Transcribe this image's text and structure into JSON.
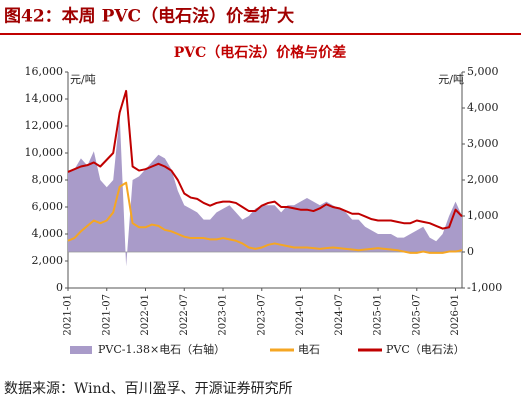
{
  "header": {
    "title": "图42：本周 PVC（电石法）价差扩大"
  },
  "source": "数据来源：Wind、百川盈孚、开源证券研究所",
  "chart_data": {
    "type": "line",
    "title": "PVC（电石法）价格与价差",
    "ylabel": "元/吨",
    "y2label": "元/吨",
    "x": [
      "2021-01",
      "2021-02",
      "2021-03",
      "2021-04",
      "2021-05",
      "2021-06",
      "2021-07",
      "2021-08",
      "2021-09",
      "2021-10",
      "2021-11",
      "2021-12",
      "2022-01",
      "2022-02",
      "2022-03",
      "2022-04",
      "2022-05",
      "2022-06",
      "2022-07",
      "2022-08",
      "2022-09",
      "2022-10",
      "2022-11",
      "2022-12",
      "2023-01",
      "2023-02",
      "2023-03",
      "2023-04",
      "2023-05",
      "2023-06",
      "2023-07",
      "2023-08",
      "2023-09",
      "2023-10",
      "2023-11",
      "2023-12",
      "2024-01",
      "2024-02",
      "2024-03",
      "2024-04",
      "2024-05",
      "2024-06",
      "2024-07",
      "2024-08",
      "2024-09",
      "2024-10",
      "2024-11",
      "2024-12",
      "2025-01",
      "2025-02",
      "2025-03",
      "2025-04",
      "2025-05",
      "2025-06",
      "2025-07",
      "2025-08",
      "2025-09",
      "2025-10",
      "2025-11",
      "2025-12",
      "2026-01",
      "2026-02"
    ],
    "xticks": [
      "2021-01",
      "2021-07",
      "2022-01",
      "2022-07",
      "2023-01",
      "2023-07",
      "2024-01",
      "2024-07",
      "2025-01",
      "2025-07",
      "2026-01"
    ],
    "ylim": [
      0,
      16000
    ],
    "yticks": [
      0,
      {
        "value": 2000,
        "label": "2,000"
      },
      {
        "value": 4000,
        "label": "4,000"
      },
      {
        "value": 6000,
        "label": "6,000"
      },
      {
        "value": 8000,
        "label": "8,000"
      },
      {
        "value": 10000,
        "label": "10,000"
      },
      {
        "value": 12000,
        "label": "12,000"
      },
      {
        "value": 14000,
        "label": "14,000"
      },
      {
        "value": 16000,
        "label": "16,000"
      }
    ],
    "y2lim": [
      -1000,
      5000
    ],
    "y2ticks": [
      {
        "value": -1000,
        "label": "-1,000"
      },
      0,
      {
        "value": 1000,
        "label": "1,000"
      },
      {
        "value": 2000,
        "label": "2,000"
      },
      {
        "value": 3000,
        "label": "3,000"
      },
      {
        "value": 4000,
        "label": "4,000"
      },
      {
        "value": 5000,
        "label": "5,000"
      }
    ],
    "series": [
      {
        "name": "PVC-1.38×电石（右轴）",
        "type": "area",
        "axis": "y2",
        "color": "#a99bc9",
        "values": [
          2200,
          2300,
          2600,
          2400,
          2800,
          2000,
          1800,
          2000,
          3800,
          -400,
          2000,
          2100,
          2300,
          2500,
          2700,
          2600,
          2300,
          1700,
          1300,
          1200,
          1100,
          900,
          900,
          1100,
          1200,
          1300,
          1100,
          900,
          1000,
          1200,
          1300,
          1300,
          1300,
          1100,
          1300,
          1300,
          1400,
          1500,
          1400,
          1300,
          1400,
          1300,
          1200,
          1100,
          900,
          900,
          700,
          600,
          500,
          500,
          500,
          400,
          400,
          500,
          600,
          700,
          400,
          300,
          500,
          1000,
          1400,
          1000
        ]
      },
      {
        "name": "电石",
        "type": "line",
        "axis": "y",
        "color": "#f5a623",
        "values": [
          3500,
          3700,
          4200,
          4600,
          5000,
          4800,
          5000,
          5600,
          7500,
          7800,
          4800,
          4500,
          4500,
          4700,
          4600,
          4300,
          4200,
          4000,
          3800,
          3700,
          3700,
          3700,
          3600,
          3600,
          3700,
          3600,
          3500,
          3300,
          3000,
          2900,
          3000,
          3200,
          3300,
          3200,
          3100,
          3000,
          3000,
          3000,
          2950,
          2900,
          2950,
          3000,
          2950,
          2900,
          2850,
          2800,
          2850,
          2900,
          2950,
          2900,
          2850,
          2800,
          2700,
          2600,
          2600,
          2700,
          2600,
          2600,
          2600,
          2700,
          2700,
          2800
        ]
      },
      {
        "name": "PVC（电石法）",
        "type": "line",
        "axis": "y",
        "color": "#c00000",
        "values": [
          8600,
          8800,
          9000,
          9100,
          9300,
          9000,
          9500,
          10000,
          13000,
          14600,
          9000,
          8700,
          8800,
          9000,
          9200,
          9000,
          8700,
          8000,
          7000,
          6700,
          6600,
          6300,
          6100,
          6300,
          6400,
          6400,
          6300,
          6000,
          5700,
          5700,
          6100,
          6300,
          6400,
          6000,
          6000,
          5900,
          5800,
          5800,
          5700,
          5900,
          6200,
          6000,
          5900,
          5700,
          5500,
          5500,
          5300,
          5100,
          5000,
          5000,
          5000,
          4900,
          4800,
          4800,
          5000,
          4900,
          4800,
          4600,
          4400,
          4500,
          5800,
          5300
        ]
      }
    ]
  }
}
